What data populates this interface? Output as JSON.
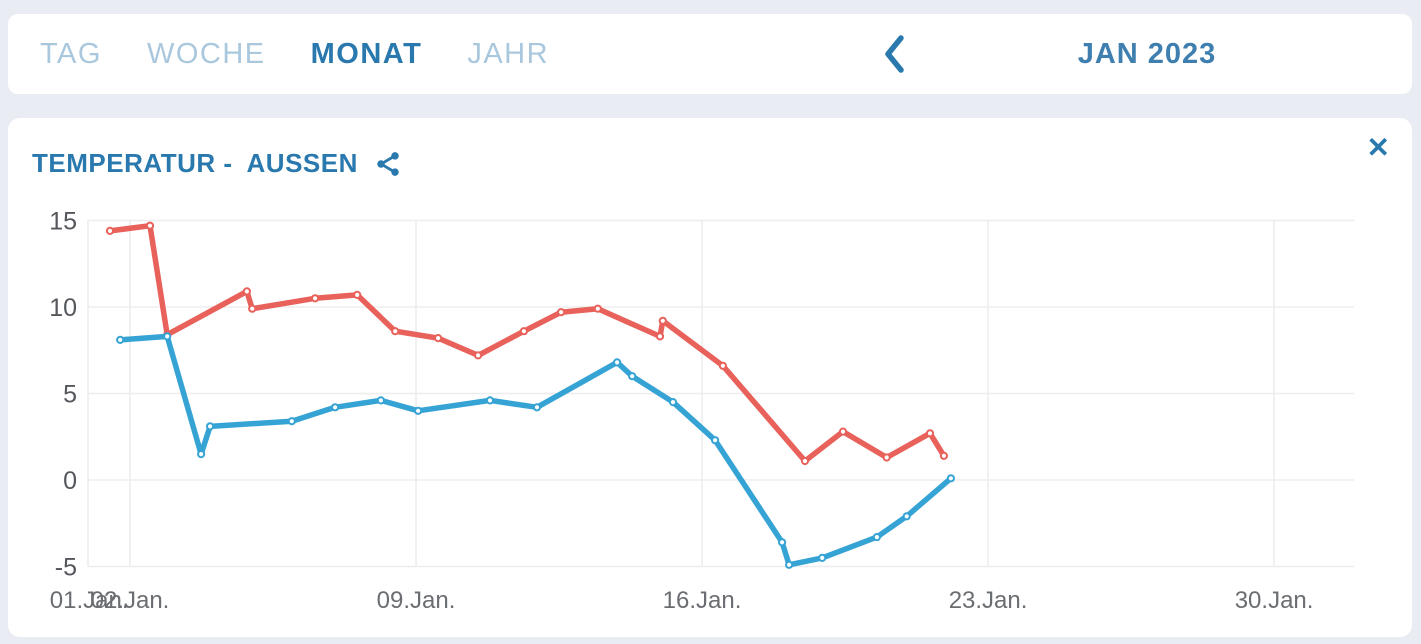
{
  "topbar": {
    "tabs": [
      {
        "id": "tag",
        "label": "TAG",
        "active": false
      },
      {
        "id": "woche",
        "label": "WOCHE",
        "active": false
      },
      {
        "id": "monat",
        "label": "MONAT",
        "active": true
      },
      {
        "id": "jahr",
        "label": "JAHR",
        "active": false
      }
    ],
    "period_label": "JAN 2023"
  },
  "card": {
    "title_part1": "TEMPERATUR -",
    "title_part2": "AUSSEN",
    "close_label": "✕"
  },
  "colors": {
    "accent": "#2a79ae",
    "accent_soft": "#3f7fb0",
    "inactive_tab": "#a9c7dd",
    "line_red": "#e8615a",
    "line_blue": "#36a3d5",
    "axis_text_y": "#54575c",
    "axis_text_x": "#6a6d71",
    "gridline": "#ededee",
    "page_background": "#e9edf3",
    "card_background": "#ffffff"
  },
  "chart_data": {
    "type": "line",
    "title": "TEMPERATUR - AUSSEN",
    "x_unit": "day of January 2023",
    "ylim": [
      -5,
      15
    ],
    "y_ticks": [
      15,
      10,
      5,
      0,
      -5
    ],
    "x_ticks": [
      {
        "day": 1,
        "label": "01.Jan."
      },
      {
        "day": 2,
        "label": "02.Jan."
      },
      {
        "day": 9,
        "label": "09.Jan."
      },
      {
        "day": 16,
        "label": "16.Jan."
      },
      {
        "day": 23,
        "label": "23.Jan."
      },
      {
        "day": 30,
        "label": "30.Jan."
      }
    ],
    "x_gridline_days": [
      2,
      9,
      16,
      23,
      30
    ],
    "grid": true,
    "legend": "none",
    "series": [
      {
        "name": "upper-red-line",
        "color": "#e8615a",
        "points": [
          [
            1.51,
            14.4
          ],
          [
            2.49,
            14.7
          ],
          [
            2.91,
            8.4
          ],
          [
            4.86,
            10.9
          ],
          [
            4.99,
            9.9
          ],
          [
            6.53,
            10.5
          ],
          [
            7.56,
            10.7
          ],
          [
            8.49,
            8.6
          ],
          [
            9.54,
            8.2
          ],
          [
            10.52,
            7.2
          ],
          [
            11.64,
            8.6
          ],
          [
            12.55,
            9.7
          ],
          [
            13.45,
            9.9
          ],
          [
            14.97,
            8.3
          ],
          [
            15.04,
            9.2
          ],
          [
            16.51,
            6.6
          ],
          [
            18.52,
            1.1
          ],
          [
            19.45,
            2.8
          ],
          [
            20.52,
            1.3
          ],
          [
            21.58,
            2.7
          ],
          [
            21.92,
            1.4
          ]
        ]
      },
      {
        "name": "lower-blue-line",
        "color": "#36a3d5",
        "points": [
          [
            1.76,
            8.1
          ],
          [
            2.91,
            8.3
          ],
          [
            3.74,
            1.5
          ],
          [
            3.96,
            3.1
          ],
          [
            5.96,
            3.4
          ],
          [
            7.02,
            4.2
          ],
          [
            8.14,
            4.6
          ],
          [
            9.05,
            4.0
          ],
          [
            10.81,
            4.6
          ],
          [
            11.96,
            4.2
          ],
          [
            13.92,
            6.8
          ],
          [
            14.29,
            6.0
          ],
          [
            15.29,
            4.5
          ],
          [
            16.32,
            2.3
          ],
          [
            17.96,
            -3.6
          ],
          [
            18.13,
            -4.9
          ],
          [
            18.94,
            -4.5
          ],
          [
            20.28,
            -3.3
          ],
          [
            21.01,
            -2.1
          ],
          [
            22.09,
            0.1
          ]
        ]
      }
    ]
  }
}
